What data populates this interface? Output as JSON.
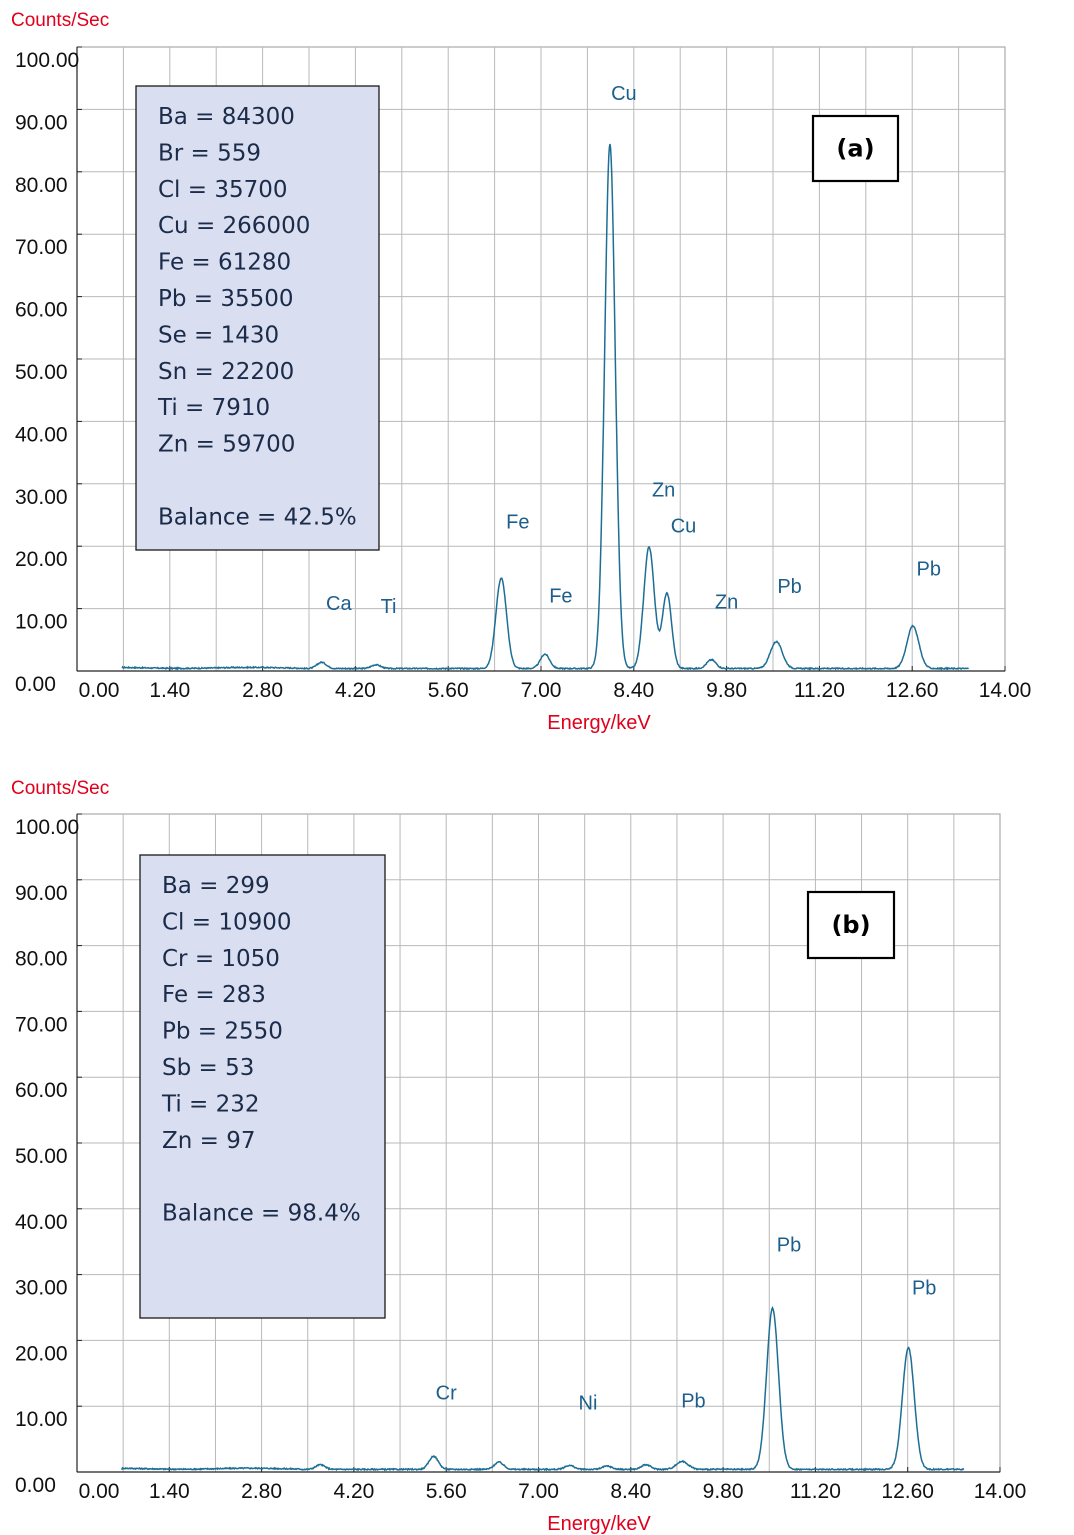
{
  "chart_data": [
    {
      "type": "line",
      "panel_label": "(a)",
      "ylabel": "Counts/Sec",
      "xlabel": "Energy/keV",
      "xlim": [
        0,
        14
      ],
      "ylim": [
        0,
        100
      ],
      "xticks": [
        "0.00",
        "1.40",
        "2.80",
        "4.20",
        "5.60",
        "7.00",
        "8.40",
        "9.80",
        "11.20",
        "12.60",
        "14.00"
      ],
      "yticks": [
        "0.00",
        "10.00",
        "20.00",
        "30.00",
        "40.00",
        "50.00",
        "60.00",
        "70.00",
        "80.00",
        "90.00",
        "100.00"
      ],
      "grid": true,
      "line_color": "#1d6e95",
      "peaks": [
        {
          "x": 3.69,
          "h": 1.0,
          "w": 0.07
        },
        {
          "x": 4.51,
          "h": 0.6,
          "w": 0.07
        },
        {
          "x": 6.4,
          "h": 14.5,
          "w": 0.08
        },
        {
          "x": 7.06,
          "h": 2.3,
          "w": 0.07
        },
        {
          "x": 8.04,
          "h": 84.0,
          "w": 0.08
        },
        {
          "x": 8.63,
          "h": 19.5,
          "w": 0.08
        },
        {
          "x": 8.9,
          "h": 12.0,
          "w": 0.07
        },
        {
          "x": 9.57,
          "h": 1.4,
          "w": 0.07
        },
        {
          "x": 10.55,
          "h": 4.3,
          "w": 0.09
        },
        {
          "x": 12.61,
          "h": 6.8,
          "w": 0.09
        }
      ],
      "peak_labels": [
        {
          "text": "Cu",
          "x": 8.25,
          "y": 91.5
        },
        {
          "text": "Zn",
          "x": 8.85,
          "y": 28.0
        },
        {
          "text": "Cu",
          "x": 9.15,
          "y": 22.2
        },
        {
          "text": "Fe",
          "x": 6.65,
          "y": 22.8
        },
        {
          "text": "Fe",
          "x": 7.3,
          "y": 11.0
        },
        {
          "text": "Zn",
          "x": 9.8,
          "y": 10.0
        },
        {
          "text": "Pb",
          "x": 10.75,
          "y": 12.5
        },
        {
          "text": "Pb",
          "x": 12.85,
          "y": 15.3
        },
        {
          "text": "Ca",
          "x": 3.95,
          "y": 9.8
        },
        {
          "text": "Ti",
          "x": 4.7,
          "y": 9.3
        }
      ],
      "composition": [
        "Ba = 84300",
        "Br = 559",
        "Cl = 35700",
        "Cu = 266000",
        "Fe = 61280",
        "Pb = 35500",
        "Se = 1430",
        "Sn = 22200",
        "Ti = 7910",
        "Zn = 59700"
      ],
      "balance": "Balance = 42.5%",
      "box_color": "#d9dff0"
    },
    {
      "type": "line",
      "panel_label": "(b)",
      "ylabel": "Counts/Sec",
      "xlabel": "Energy/keV",
      "xlim": [
        0,
        14
      ],
      "ylim": [
        0,
        100
      ],
      "xticks": [
        "0.00",
        "1.40",
        "2.80",
        "4.20",
        "5.60",
        "7.00",
        "8.40",
        "9.80",
        "11.20",
        "12.60",
        "14.00"
      ],
      "yticks": [
        "0.00",
        "10.00",
        "20.00",
        "30.00",
        "40.00",
        "50.00",
        "60.00",
        "70.00",
        "80.00",
        "90.00",
        "100.00"
      ],
      "grid": true,
      "line_color": "#1d6e95",
      "peaks": [
        {
          "x": 3.69,
          "h": 0.7,
          "w": 0.07
        },
        {
          "x": 5.41,
          "h": 2.0,
          "w": 0.07
        },
        {
          "x": 6.4,
          "h": 1.1,
          "w": 0.07
        },
        {
          "x": 7.47,
          "h": 0.6,
          "w": 0.07
        },
        {
          "x": 8.04,
          "h": 0.5,
          "w": 0.07
        },
        {
          "x": 8.63,
          "h": 0.7,
          "w": 0.07
        },
        {
          "x": 9.18,
          "h": 1.2,
          "w": 0.09
        },
        {
          "x": 10.55,
          "h": 24.5,
          "w": 0.09
        },
        {
          "x": 12.61,
          "h": 18.5,
          "w": 0.09
        }
      ],
      "peak_labels": [
        {
          "text": "Pb",
          "x": 10.8,
          "y": 33.5
        },
        {
          "text": "Pb",
          "x": 12.85,
          "y": 27.0
        },
        {
          "text": "Cr",
          "x": 5.6,
          "y": 11.0
        },
        {
          "text": "Ni",
          "x": 7.75,
          "y": 9.5
        },
        {
          "text": "Pb",
          "x": 9.35,
          "y": 9.8
        }
      ],
      "composition": [
        "Ba = 299",
        "Cl = 10900",
        "Cr = 1050",
        "Fe = 283",
        "Pb = 2550",
        "Sb = 53",
        "Ti = 232",
        "Zn = 97"
      ],
      "balance": "Balance = 98.4%",
      "box_color": "#d9dff0"
    }
  ]
}
